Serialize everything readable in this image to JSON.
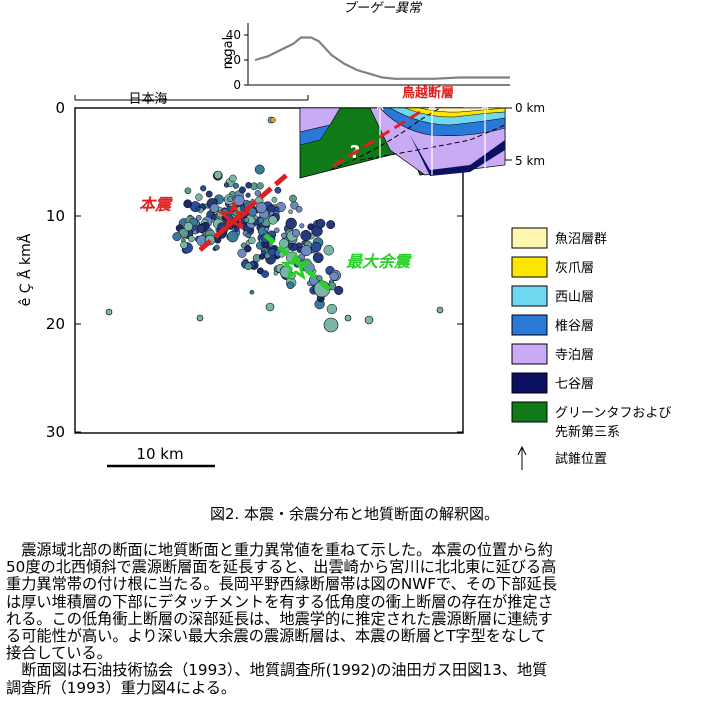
{
  "gravity": {
    "title": "ブーゲー異常",
    "unit": "mgal",
    "ticks": [
      "40",
      "20",
      "0"
    ],
    "profile": [
      [
        0,
        20
      ],
      [
        5,
        23
      ],
      [
        10,
        28
      ],
      [
        15,
        33
      ],
      [
        18,
        38
      ],
      [
        22,
        38
      ],
      [
        25,
        35
      ],
      [
        30,
        24
      ],
      [
        35,
        17
      ],
      [
        40,
        12
      ],
      [
        45,
        9
      ],
      [
        50,
        6
      ],
      [
        55,
        5
      ],
      [
        60,
        5
      ],
      [
        70,
        5
      ],
      [
        80,
        6
      ],
      [
        100,
        6
      ]
    ]
  },
  "section": {
    "sea_label": "日本海",
    "fault_label": "鳥越断層",
    "depth_ticks": [
      "0 km",
      "5 km"
    ],
    "question_mark": "?"
  },
  "plot": {
    "ylabel": "ê Ç Å kmÅ",
    "yticks": [
      "0",
      "10",
      "20",
      "30"
    ],
    "scale_label": "10 km",
    "mainshock_label": "本震",
    "aftershock_label": "最大余震"
  },
  "legend": {
    "items": [
      {
        "label": "魚沼層群",
        "color": "#fff6b0"
      },
      {
        "label": "灰爪層",
        "color": "#ffe600"
      },
      {
        "label": "西山層",
        "color": "#6fd8f0"
      },
      {
        "label": "椎谷層",
        "color": "#2a78d8"
      },
      {
        "label": "寺泊層",
        "color": "#c9aaf5"
      },
      {
        "label": "七谷層",
        "color": "#0b1060"
      },
      {
        "label": "グリーンタフおよび",
        "label2": "先新第三系",
        "color": "#107a18"
      }
    ],
    "boring_label": "試錐位置"
  },
  "caption": "図2.  本震・余震分布と地質断面の解釈図。",
  "body_lines": [
    "　震源域北部の断面に地質断面と重力異常値を重ねて示した。本震の位置から約",
    "50度の北西傾斜で震源断層面を延長すると、出雲崎から宮川に北北東に延びる高",
    "重力異常帯の付け根に当たる。長岡平野西縁断層帯は図のNWFで、その下部延長",
    "は厚い堆積層の下部にデタッチメントを有する低角度の衝上断層の存在が推定さ",
    "れる。この低角衝上断層の深部延長は、地震学的に推定された震源断層に連続す",
    "る可能性が高い。より深い最大余震の震源断層は、本震の断層とT字型をなして",
    "接合している。",
    "　断面図は石油技術協会（1993）、地質調査所(1992)の油田ガス田図13、地質",
    "調査所（1993）重力図4による。"
  ]
}
